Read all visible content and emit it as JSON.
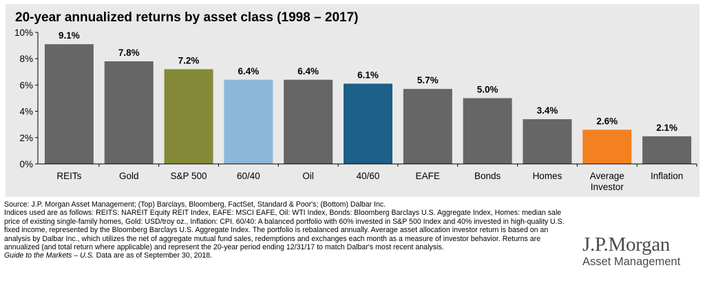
{
  "chart_data": {
    "type": "bar",
    "title": "20-year annualized returns by asset class (1998 – 2017)",
    "categories": [
      "REITs",
      "Gold",
      "S&P 500",
      "60/40",
      "Oil",
      "40/60",
      "EAFE",
      "Bonds",
      "Homes",
      "Average Investor",
      "Inflation"
    ],
    "values": [
      9.1,
      7.8,
      7.2,
      6.4,
      6.4,
      6.1,
      5.7,
      5.0,
      3.4,
      2.6,
      2.1
    ],
    "data_labels": [
      "9.1%",
      "7.8%",
      "7.2%",
      "6.4%",
      "6.4%",
      "6.1%",
      "5.7%",
      "5.0%",
      "3.4%",
      "2.6%",
      "2.1%"
    ],
    "colors": [
      "#666666",
      "#666666",
      "#858a38",
      "#8db7d8",
      "#666666",
      "#1b6088",
      "#666666",
      "#666666",
      "#666666",
      "#f4811f",
      "#666666"
    ],
    "ylim": [
      0,
      10
    ],
    "yticks": [
      "0%",
      "2%",
      "4%",
      "6%",
      "8%",
      "10%"
    ],
    "ytick_values": [
      0,
      2,
      4,
      6,
      8,
      10
    ],
    "grid": false,
    "legend": "none"
  },
  "footer": {
    "source": "Source: J.P. Morgan Asset Management; (Top) Barclays, Bloomberg, FactSet, Standard & Poor's; (Bottom) Dalbar Inc.",
    "indices": "Indices used are as follows: REITS: NAREIT Equity REIT Index, EAFE: MSCI EAFE, Oil: WTI Index, Bonds: Bloomberg Barclays U.S. Aggregate Index, Homes: median sale price of existing single-family homes, Gold: USD/troy oz., Inflation: CPI. 60/40: A balanced portfolio with 60% invested in S&P 500 Index and 40% invested in high-quality U.S. fixed income, represented by the Bloomberg Barclays U.S. Aggregate Index. The portfolio is rebalanced annually. Average asset allocation investor return is based on an analysis by Dalbar Inc., which utilizes the net of aggregate mutual fund sales, redemptions and exchanges each month as a measure of investor behavior. Returns are annualized (and total return where applicable) and represent the 20-year period ending 12/31/17 to match Dalbar's most recent analysis.",
    "guide_title": "Guide to the Markets – U.S.",
    "guide_rest": " Data are as of September 30, 2018."
  },
  "logo": {
    "name": "J.P.Morgan",
    "subtitle": "Asset Management",
    "color": "#4b4b4b"
  }
}
